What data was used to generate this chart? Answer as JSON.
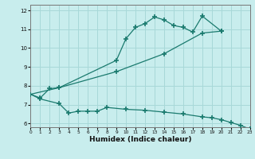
{
  "title": "",
  "xlabel": "Humidex (Indice chaleur)",
  "bg_color": "#c8eded",
  "grid_color": "#a8d8d8",
  "line_color": "#1a7a6e",
  "xlim": [
    0,
    23
  ],
  "ylim": [
    5.8,
    12.3
  ],
  "yticks": [
    6,
    7,
    8,
    9,
    10,
    11,
    12
  ],
  "xticks": [
    0,
    1,
    2,
    3,
    4,
    5,
    6,
    7,
    8,
    9,
    10,
    11,
    12,
    13,
    14,
    15,
    16,
    17,
    18,
    19,
    20,
    21,
    22,
    23
  ],
  "line1_x": [
    0,
    1,
    2,
    3,
    9,
    10,
    11,
    12,
    13,
    14,
    15,
    16,
    17,
    18,
    20
  ],
  "line1_y": [
    7.55,
    7.35,
    7.85,
    7.9,
    9.35,
    10.5,
    11.1,
    11.3,
    11.65,
    11.5,
    11.2,
    11.1,
    10.85,
    11.7,
    10.9
  ],
  "line2_x": [
    0,
    3,
    9,
    14,
    18,
    20
  ],
  "line2_y": [
    7.55,
    7.9,
    8.75,
    9.7,
    10.8,
    10.9
  ],
  "line3_x": [
    0,
    1,
    3,
    4,
    5,
    6,
    7,
    8,
    10,
    12,
    14,
    16,
    18,
    19,
    20,
    21,
    22,
    23
  ],
  "line3_y": [
    7.55,
    7.3,
    7.05,
    6.55,
    6.65,
    6.65,
    6.65,
    6.85,
    6.75,
    6.7,
    6.6,
    6.5,
    6.35,
    6.3,
    6.2,
    6.05,
    5.9,
    5.7
  ]
}
